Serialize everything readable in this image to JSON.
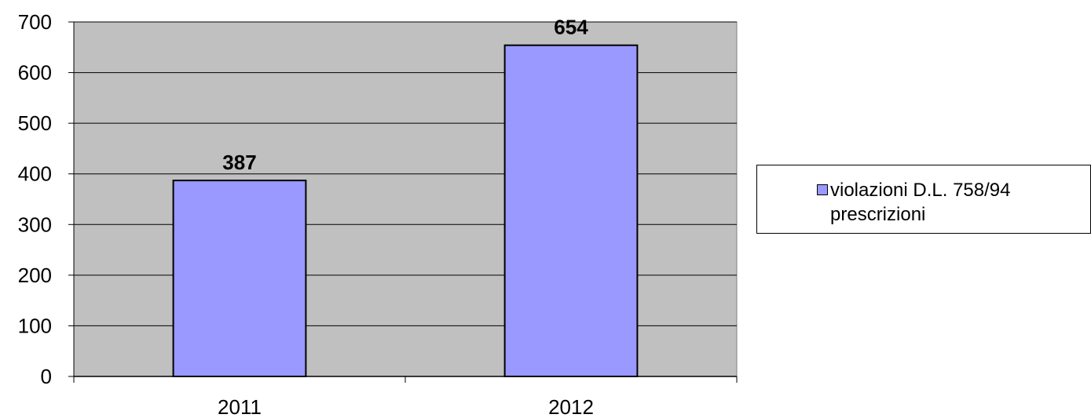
{
  "chart_data": {
    "type": "bar",
    "categories": [
      "2011",
      "2012"
    ],
    "series": [
      {
        "name": "violazioni D.L. 758/94 prescrizioni",
        "values": [
          387,
          654
        ]
      }
    ],
    "data_labels": [
      "387",
      "654"
    ],
    "ylim": [
      0,
      700
    ],
    "yticks": [
      0,
      100,
      200,
      300,
      400,
      500,
      600,
      700
    ],
    "grid": true,
    "legend_position": "right",
    "colors": {
      "bar_fill": "#9999ff",
      "plot_background": "#c0c0c0",
      "bar_stroke": "#000000"
    }
  }
}
